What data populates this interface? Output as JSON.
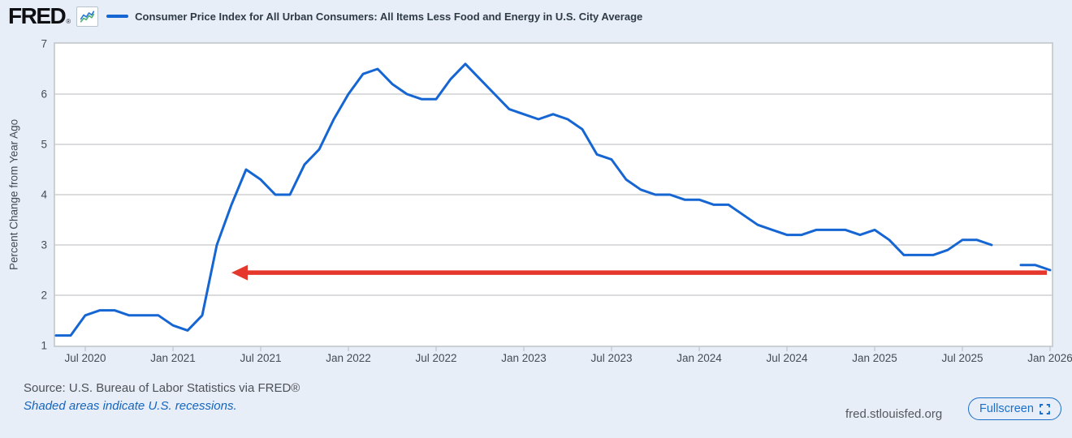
{
  "header": {
    "logo": "FRED",
    "registered": "®",
    "series_title": "Consumer Price Index for All Urban Consumers: All Items Less Food and Energy in U.S. City Average"
  },
  "footer": {
    "source": "Source: U.S. Bureau of Labor Statistics via FRED®",
    "recessions_note": "Shaded areas indicate U.S. recessions.",
    "site": "fred.stlouisfed.org",
    "fullscreen_label": "Fullscreen"
  },
  "colors": {
    "page_bg": "#e7eef8",
    "plot_bg": "#ffffff",
    "grid": "#cdd0d3",
    "plot_border": "#c2c6ca",
    "axis_text": "#454c52",
    "series_blue": "#1565d2",
    "arrow_red": "#e5372b",
    "link_blue": "#1565c0",
    "button_blue": "#1a6fc9",
    "title_text": "#2e3a46"
  },
  "chart_data": {
    "type": "line",
    "title": "Consumer Price Index for All Urban Consumers: All Items Less Food and Energy in U.S. City Average",
    "ylabel": "Percent Change from Year Ago",
    "ylim": [
      1,
      7
    ],
    "y_ticks": [
      1,
      2,
      3,
      4,
      5,
      6,
      7
    ],
    "grid": "horizontal-only",
    "legend_position": "top",
    "x_start_month": "2020-05",
    "x_tick_first_offset": 2,
    "x_tick_step_months": 6,
    "x_tick_labels": [
      "Jul 2020",
      "Jan 2021",
      "Jul 2021",
      "Jan 2022",
      "Jul 2022",
      "Jan 2023",
      "Jul 2023",
      "Jan 2024",
      "Jul 2024",
      "Jan 2025",
      "Jul 2025",
      "Jan 2026"
    ],
    "gap_note": "no data plotted for Oct 2025 (line gap between Sep 2025 and Nov 2025)",
    "series": [
      {
        "name": "CPI All Items Less Food and Energy, percent change from year ago, monthly May 2020 - Jan 2026",
        "color": "#1565d2",
        "values": [
          1.2,
          1.2,
          1.6,
          1.7,
          1.7,
          1.6,
          1.6,
          1.6,
          1.4,
          1.3,
          1.6,
          3.0,
          3.8,
          4.5,
          4.3,
          4.0,
          4.0,
          4.6,
          4.9,
          5.5,
          6.0,
          6.4,
          6.5,
          6.2,
          6.0,
          5.9,
          5.9,
          6.3,
          6.6,
          6.3,
          6.0,
          5.7,
          5.6,
          5.5,
          5.6,
          5.5,
          5.3,
          4.8,
          4.7,
          4.3,
          4.1,
          4.0,
          4.0,
          3.9,
          3.9,
          3.8,
          3.8,
          3.6,
          3.4,
          3.3,
          3.2,
          3.2,
          3.3,
          3.3,
          3.3,
          3.2,
          3.3,
          3.1,
          2.8,
          2.8,
          2.8,
          2.9,
          3.1,
          3.1,
          3.0,
          null,
          2.6,
          2.6,
          2.5
        ]
      }
    ],
    "annotation_arrow": {
      "shape": "horizontal-arrow-pointing-left",
      "color": "#e5372b",
      "level": 2.45,
      "points_to_month_offset": 12,
      "points_to_month": "2021-05",
      "extends_to_month_offset": 68,
      "extends_to_month": "2026-01"
    }
  }
}
